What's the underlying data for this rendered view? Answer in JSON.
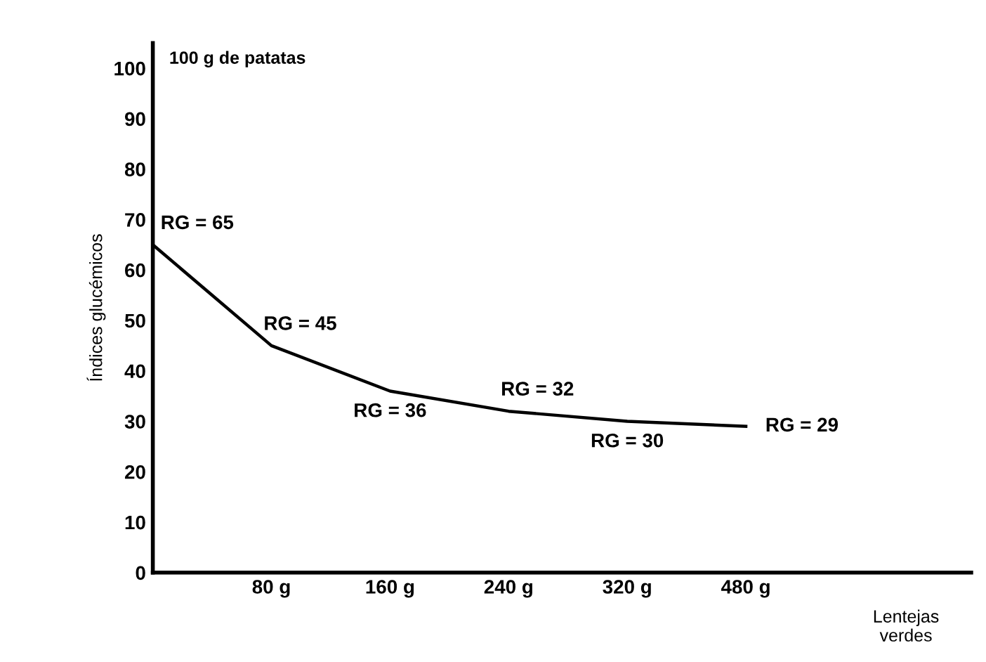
{
  "chart_data": {
    "type": "line",
    "categories": [
      null,
      "80 g",
      "160 g",
      "240 g",
      "320 g",
      "480 g"
    ],
    "series": [
      {
        "color": "#000000",
        "values": [
          65,
          45,
          36,
          32,
          30,
          29
        ],
        "value_labels": [
          "RG = 65",
          "RG = 45",
          "RG = 36",
          "RG = 32",
          "RG = 30",
          "RG = 29"
        ]
      }
    ],
    "ylim": [
      0,
      105
    ],
    "yticks": [
      0,
      10,
      20,
      30,
      40,
      50,
      60,
      70,
      80,
      90,
      100
    ],
    "xlabel": "Lentejas\nverdes",
    "ylabel": "Índices glucémicos",
    "annotations": [
      "100 g de patatas"
    ],
    "grid": false,
    "legend": false,
    "marker": "none",
    "line_style": "solid"
  }
}
